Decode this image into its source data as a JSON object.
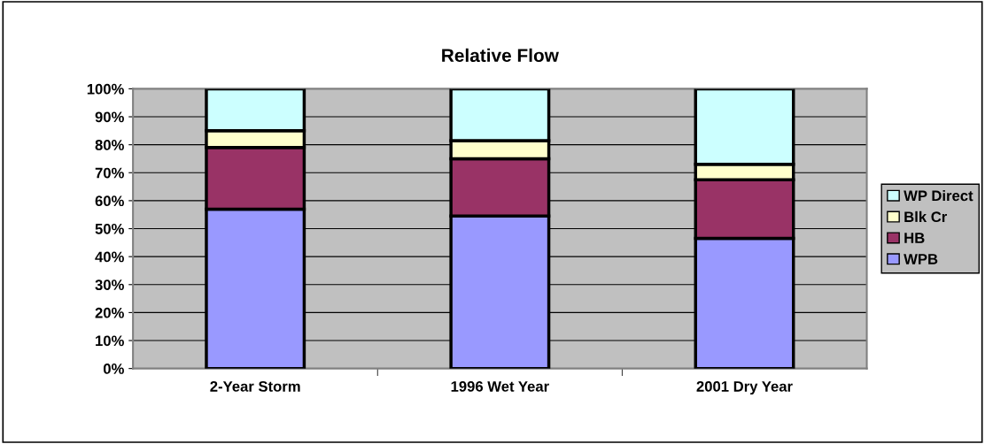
{
  "chart_data": {
    "type": "bar",
    "title": "Relative Flow",
    "stacked": true,
    "categories": [
      "2-Year Storm",
      "1996 Wet Year",
      "2001 Dry Year"
    ],
    "series": [
      {
        "name": "WPB",
        "color": "#9999ff",
        "values": [
          57,
          54.5,
          46.5
        ]
      },
      {
        "name": "HB",
        "color": "#993366",
        "values": [
          22,
          20.5,
          21
        ]
      },
      {
        "name": "Blk Cr",
        "color": "#ffffcc",
        "values": [
          6,
          6.5,
          5.5
        ]
      },
      {
        "name": "WP Direct",
        "color": "#ccffff",
        "values": [
          15,
          18.5,
          27
        ]
      }
    ],
    "ylim": [
      0,
      100
    ],
    "yticks": [
      {
        "value": 0,
        "label": "0%"
      },
      {
        "value": 10,
        "label": "10%"
      },
      {
        "value": 20,
        "label": "20%"
      },
      {
        "value": 30,
        "label": "30%"
      },
      {
        "value": 40,
        "label": "40%"
      },
      {
        "value": 50,
        "label": "50%"
      },
      {
        "value": 60,
        "label": "60%"
      },
      {
        "value": 70,
        "label": "70%"
      },
      {
        "value": 80,
        "label": "80%"
      },
      {
        "value": 90,
        "label": "90%"
      },
      {
        "value": 100,
        "label": "100%"
      }
    ],
    "grid": "y",
    "legend": "right"
  }
}
